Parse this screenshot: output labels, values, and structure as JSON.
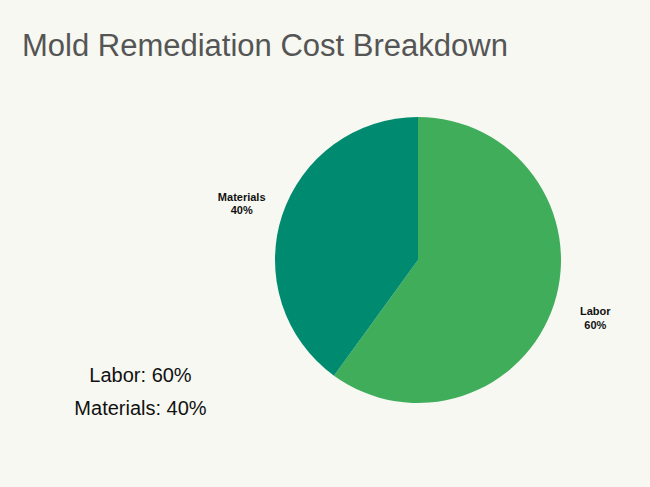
{
  "chart_data": {
    "type": "pie",
    "title": "Mold Remediation Cost Breakdown",
    "categories": [
      "Labor",
      "Materials"
    ],
    "values": [
      60,
      40
    ],
    "value_labels": [
      "60%",
      "40%"
    ],
    "colors": [
      "#40ad5b",
      "#008a70"
    ],
    "data_labels": true,
    "annotations": [
      "Labor: 60%",
      "Materials: 40%"
    ]
  }
}
